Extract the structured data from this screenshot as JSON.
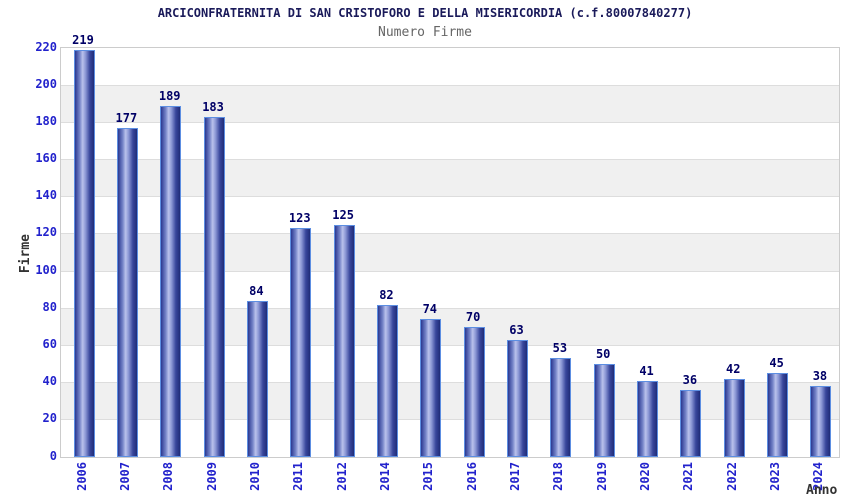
{
  "chart_data": {
    "type": "bar",
    "title": "ARCICONFRATERNITA DI SAN CRISTOFORO E DELLA MISERICORDIA (c.f.80007840277)",
    "subtitle": "Numero Firme",
    "xlabel": "Anno",
    "ylabel": "Firme",
    "categories": [
      "2006",
      "2007",
      "2008",
      "2009",
      "2010",
      "2011",
      "2012",
      "2014",
      "2015",
      "2016",
      "2017",
      "2018",
      "2019",
      "2020",
      "2021",
      "2022",
      "2023",
      "2024"
    ],
    "values": [
      219,
      177,
      189,
      183,
      84,
      123,
      125,
      82,
      74,
      70,
      63,
      53,
      50,
      41,
      36,
      42,
      45,
      38
    ],
    "ylim": [
      0,
      220
    ],
    "ytick_step": 20,
    "yticks": [
      0,
      20,
      40,
      60,
      80,
      100,
      120,
      140,
      160,
      180,
      200,
      220
    ],
    "grid": "horizontal-bands",
    "legend": "none",
    "colors": {
      "title": "#1a1a5a",
      "subtitle": "#666666",
      "axis_title": "#333333",
      "tick_label": "#2222cc",
      "value_label": "#000066",
      "bar_border": "#5c8ee2",
      "bar_gradient": [
        "#2b3890",
        "#7584c8",
        "#bac2ec",
        "#8d99d6",
        "#39479c",
        "#202c78"
      ],
      "band_fill": "#f0f0f0",
      "gridline": "#dddddd",
      "plot_border": "#cccccc",
      "background": "#ffffff"
    }
  }
}
